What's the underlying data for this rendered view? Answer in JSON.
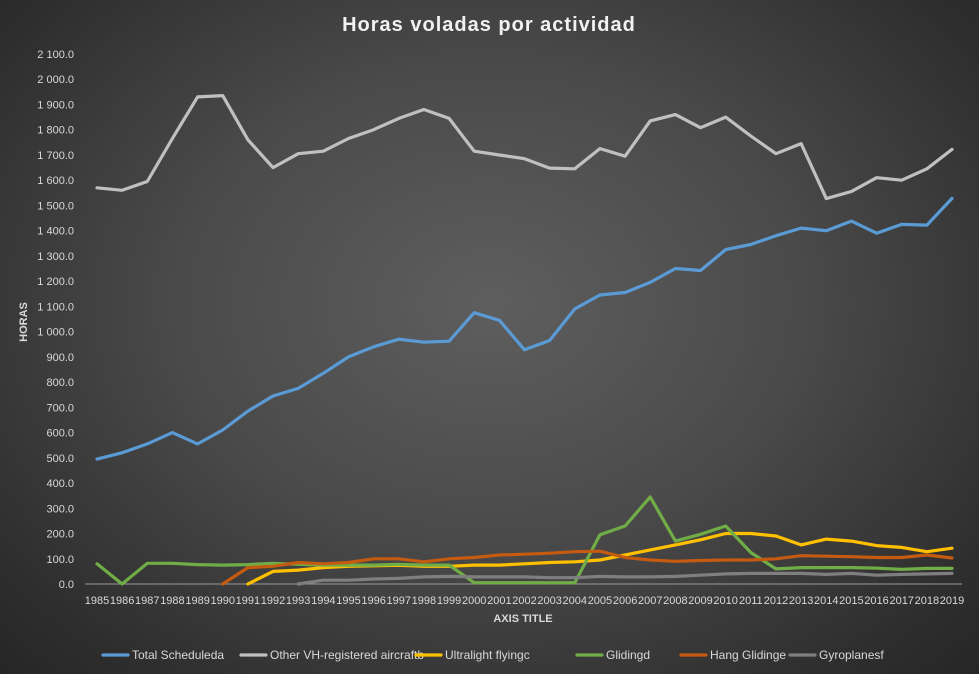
{
  "chart_data": {
    "type": "line",
    "title": "Horas voladas por actividad",
    "xlabel": "AXIS TITLE",
    "ylabel": "HORAS",
    "ylim": [
      0,
      2100
    ],
    "ytick_step": 100,
    "ytick_labels": [
      "0.0",
      "100.0",
      "200.0",
      "300.0",
      "400.0",
      "500.0",
      "600.0",
      "700.0",
      "800.0",
      "900.0",
      "1 000.0",
      "1 100.0",
      "1 200.0",
      "1 300.0",
      "1 400.0",
      "1 500.0",
      "1 600.0",
      "1 700.0",
      "1 800.0",
      "1 900.0",
      "2 000.0",
      "2 100.0"
    ],
    "grid": false,
    "legend_position": "bottom",
    "categories": [
      "1985",
      "1986",
      "1987",
      "1988",
      "1989",
      "1990",
      "1991",
      "1992",
      "1993",
      "1994",
      "1995",
      "1996",
      "1997",
      "1998",
      "1999",
      "2000",
      "2001",
      "2002",
      "2003",
      "2004",
      "2005",
      "2006",
      "2007",
      "2008",
      "2009",
      "2010",
      "2011",
      "2012",
      "2013",
      "2014",
      "2015",
      "2016",
      "2017",
      "2018",
      "2019"
    ],
    "series": [
      {
        "name": "Total Scheduleda",
        "color": "#5b9bd5",
        "values": [
          495,
          520,
          555,
          600,
          555,
          610,
          685,
          745,
          775,
          835,
          900,
          940,
          970,
          958,
          962,
          1075,
          1045,
          928,
          965,
          1090,
          1145,
          1155,
          1195,
          1250,
          1242,
          1325,
          1345,
          1380,
          1410,
          1400,
          1438,
          1390,
          1425,
          1422,
          1528
        ]
      },
      {
        "name": "Other VH-registered aircraftb",
        "color": "#c0c0c0",
        "values": [
          1570,
          1560,
          1595,
          1765,
          1930,
          1935,
          1760,
          1650,
          1705,
          1715,
          1765,
          1800,
          1845,
          1880,
          1845,
          1715,
          1700,
          1685,
          1648,
          1645,
          1725,
          1695,
          1835,
          1860,
          1808,
          1850,
          1775,
          1705,
          1745,
          1527,
          1555,
          1610,
          1600,
          1645,
          1722
        ]
      },
      {
        "name": "Ultralight flyingc",
        "color": "#ffc000",
        "values": [
          null,
          null,
          null,
          null,
          null,
          null,
          0,
          50,
          55,
          65,
          70,
          72,
          74,
          70,
          70,
          75,
          75,
          80,
          85,
          88,
          95,
          115,
          135,
          155,
          175,
          200,
          200,
          190,
          155,
          178,
          170,
          152,
          145,
          128,
          142
        ]
      },
      {
        "name": "Glidingd",
        "color": "#70ad47",
        "values": [
          80,
          0,
          82,
          82,
          77,
          75,
          77,
          82,
          78,
          75,
          75,
          75,
          78,
          75,
          75,
          5,
          5,
          5,
          5,
          5,
          195,
          230,
          345,
          170,
          197,
          230,
          125,
          60,
          65,
          65,
          65,
          63,
          58,
          62,
          62
        ]
      },
      {
        "name": "Hang Glidinge",
        "color": "#c55a11",
        "values": [
          null,
          null,
          null,
          null,
          null,
          0,
          65,
          70,
          85,
          80,
          85,
          100,
          100,
          88,
          100,
          105,
          115,
          118,
          122,
          128,
          130,
          105,
          95,
          90,
          93,
          95,
          95,
          100,
          112,
          110,
          108,
          105,
          105,
          115,
          103
        ]
      },
      {
        "name": "Gyroplanesf",
        "color": "#7f7f7f",
        "values": [
          null,
          null,
          null,
          null,
          null,
          null,
          null,
          null,
          0,
          15,
          15,
          20,
          22,
          28,
          30,
          28,
          28,
          28,
          25,
          25,
          30,
          28,
          28,
          30,
          35,
          40,
          42,
          42,
          42,
          38,
          42,
          35,
          38,
          40,
          42
        ]
      }
    ]
  }
}
